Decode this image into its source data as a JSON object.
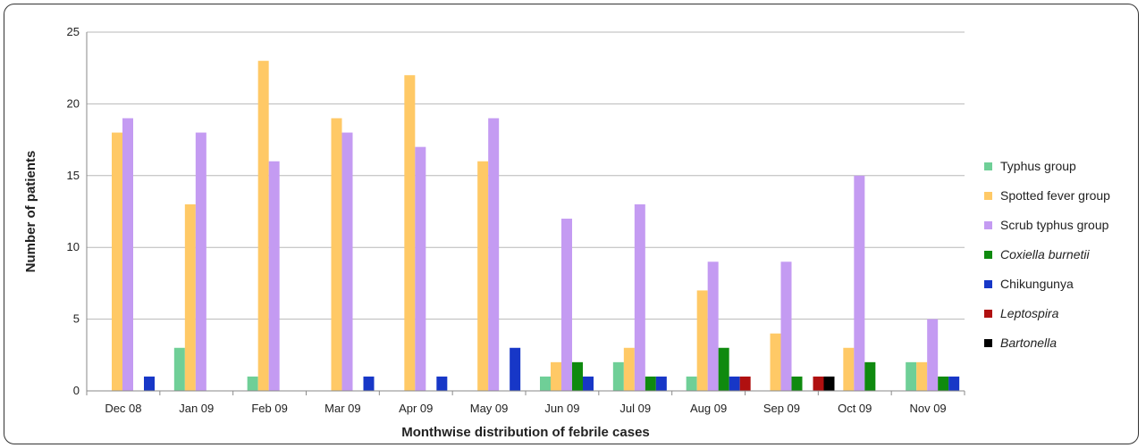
{
  "chart_data": {
    "type": "bar",
    "title": "",
    "xlabel": "Monthwise distribution of febrile cases",
    "ylabel": "Number of patients",
    "ylim": [
      0,
      25
    ],
    "yticks": [
      0,
      5,
      10,
      15,
      20,
      25
    ],
    "grid": "horizontal",
    "legend_position": "right",
    "categories": [
      "Dec 08",
      "Jan 09",
      "Feb 09",
      "Mar 09",
      "Apr 09",
      "May 09",
      "Jun 09",
      "Jul 09",
      "Aug 09",
      "Sep 09",
      "Oct 09",
      "Nov 09"
    ],
    "series": [
      {
        "name": "Typhus group",
        "italic": false,
        "color": "#6fcf97",
        "values": [
          0,
          3,
          1,
          0,
          0,
          0,
          1,
          2,
          1,
          0,
          0,
          2
        ]
      },
      {
        "name": "Spotted fever group",
        "italic": false,
        "color": "#ffc966",
        "values": [
          18,
          13,
          23,
          19,
          22,
          16,
          2,
          3,
          7,
          4,
          3,
          2
        ]
      },
      {
        "name": "Scrub typhus group",
        "italic": false,
        "color": "#c49bf2",
        "values": [
          19,
          18,
          16,
          18,
          17,
          19,
          12,
          13,
          9,
          9,
          15,
          5
        ]
      },
      {
        "name": "Coxiella burnetii",
        "italic": true,
        "color": "#0f8a0f",
        "values": [
          0,
          0,
          0,
          0,
          0,
          0,
          2,
          1,
          3,
          1,
          2,
          1
        ]
      },
      {
        "name": "Chikungunya",
        "italic": false,
        "color": "#1737c7",
        "values": [
          1,
          0,
          0,
          1,
          1,
          3,
          1,
          1,
          1,
          0,
          0,
          1
        ]
      },
      {
        "name": "Leptospira",
        "italic": true,
        "color": "#b01010",
        "values": [
          0,
          0,
          0,
          0,
          0,
          0,
          0,
          0,
          1,
          1,
          0,
          0
        ]
      },
      {
        "name": "Bartonella",
        "italic": true,
        "color": "#000000",
        "values": [
          0,
          0,
          0,
          0,
          0,
          0,
          0,
          0,
          0,
          1,
          0,
          0
        ]
      }
    ]
  }
}
